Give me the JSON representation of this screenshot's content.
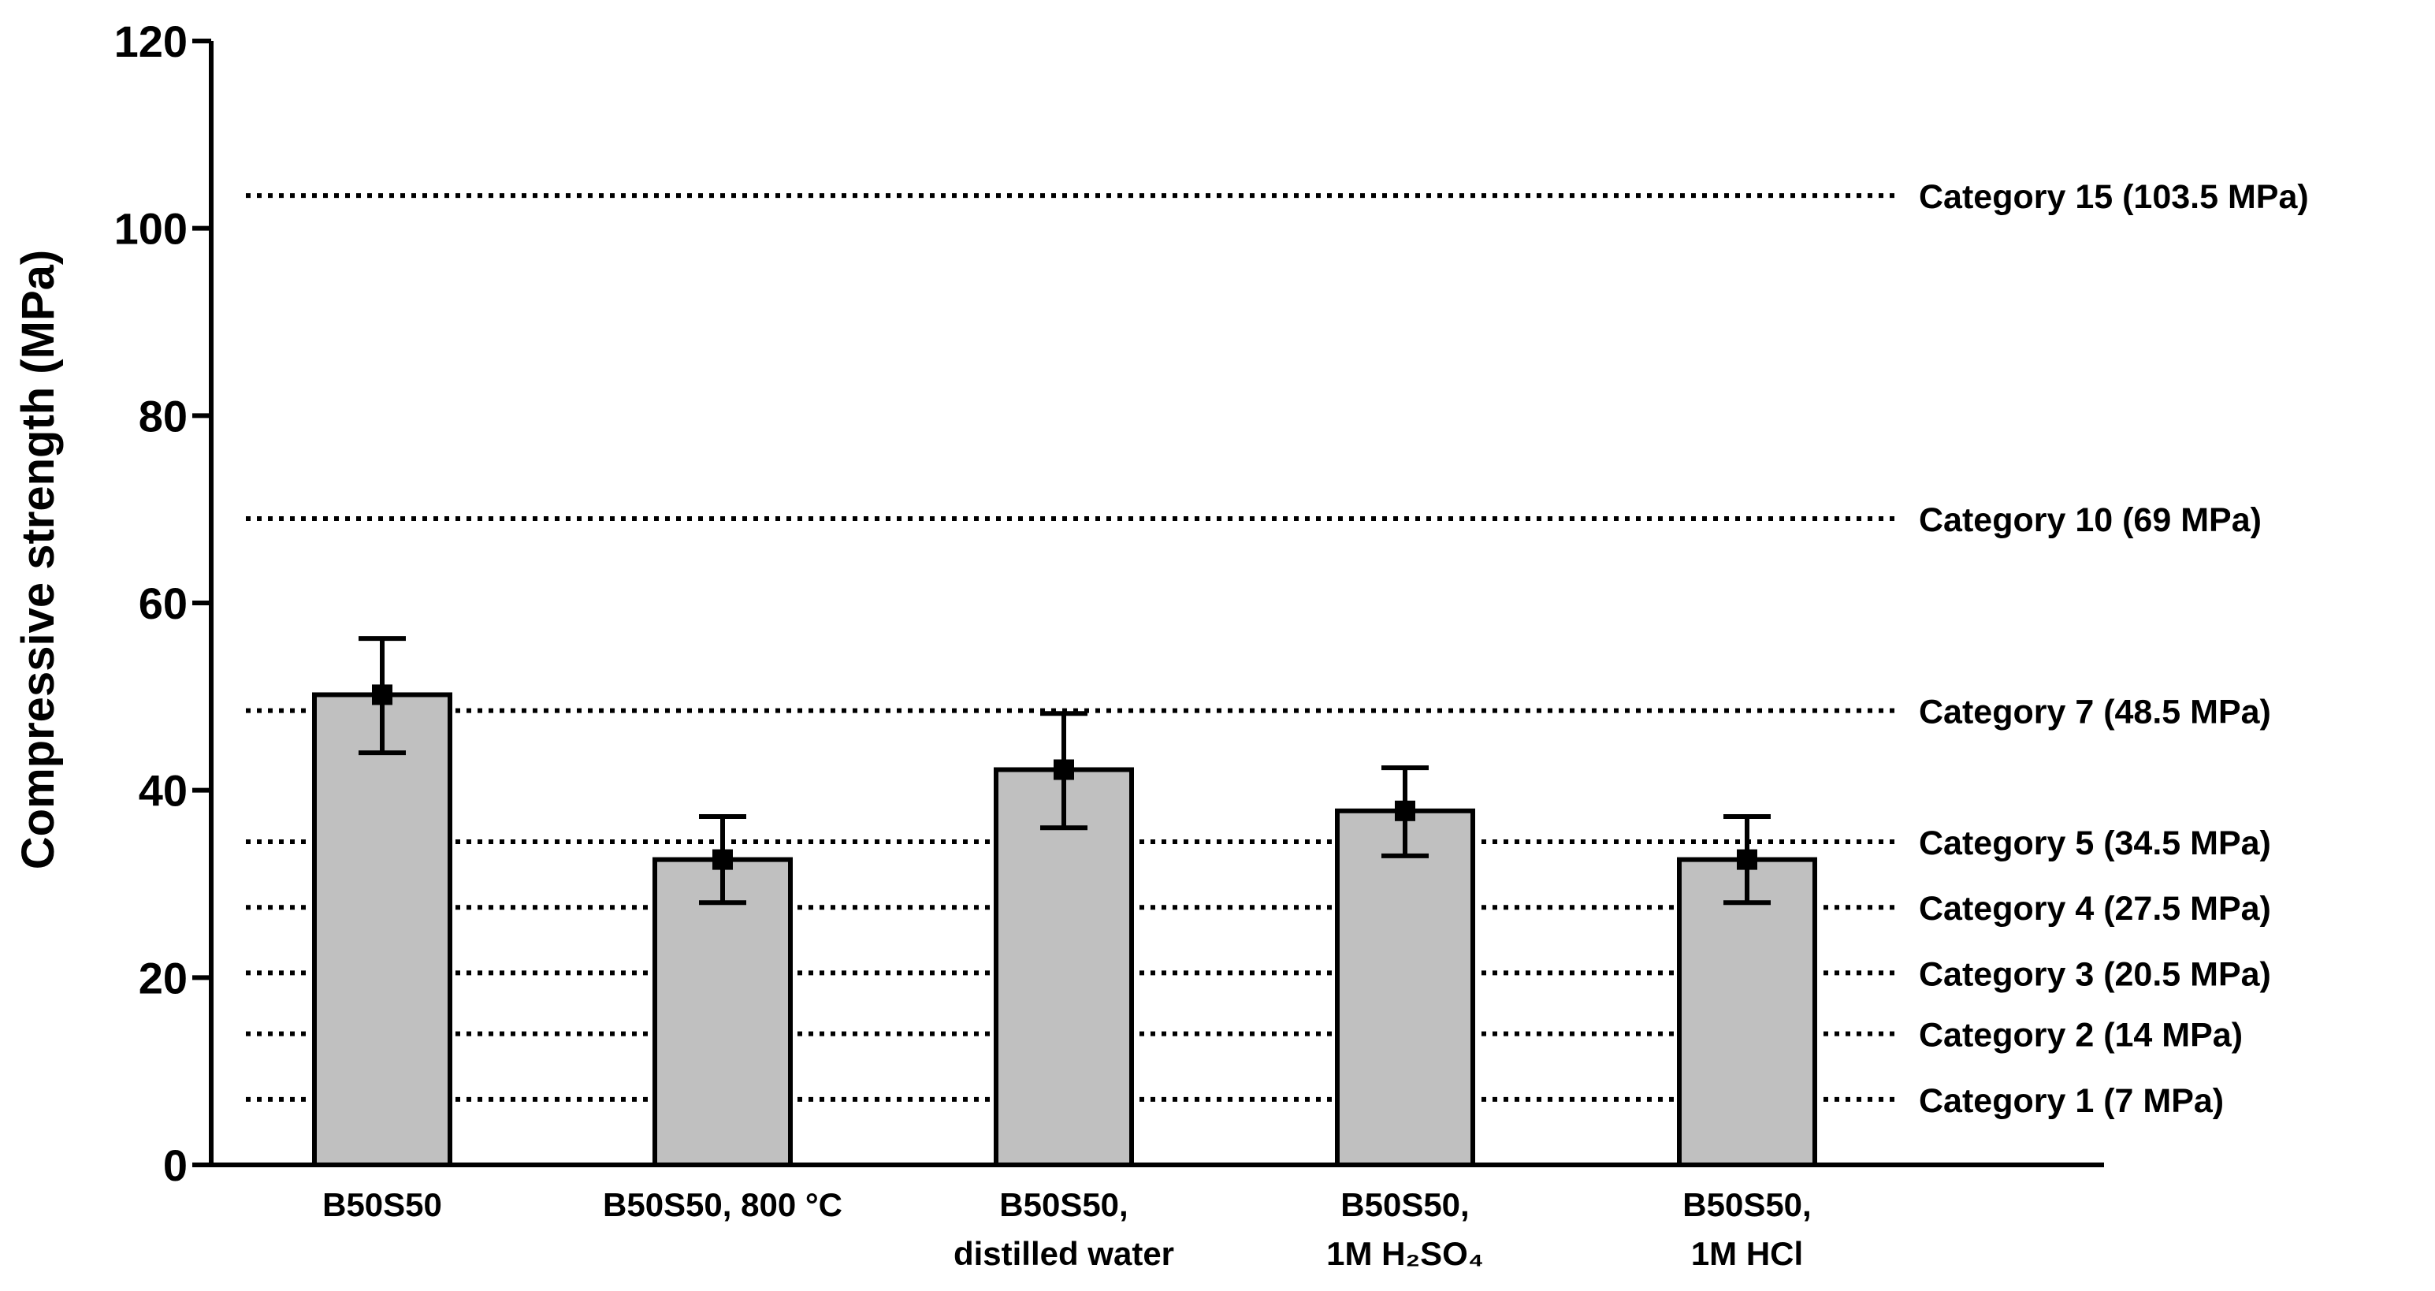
{
  "chart_data": {
    "type": "bar",
    "title": "",
    "xlabel": "",
    "ylabel": "Compressive strength (MPa)",
    "ylim": [
      0,
      120
    ],
    "yticks": [
      "0",
      "20",
      "40",
      "60",
      "80",
      "100",
      "120"
    ],
    "grid": false,
    "legend": "none",
    "categories": [
      {
        "line1": "B50S50",
        "line2": ""
      },
      {
        "line1": "B50S50, 800 °C",
        "line2": ""
      },
      {
        "line1": "B50S50,",
        "line2": "distilled water"
      },
      {
        "line1": "B50S50,",
        "line2": "1M H₂SO₄"
      },
      {
        "line1": "B50S50,",
        "line2": "1M HCl"
      }
    ],
    "series": [
      {
        "values": [
          50.2,
          32.6,
          42.2,
          37.8,
          32.6
        ],
        "error_low": [
          44.0,
          28.0,
          36.0,
          33.0,
          28.0
        ],
        "error_high": [
          56.2,
          37.2,
          48.2,
          42.4,
          37.2
        ]
      }
    ],
    "reference_lines": [
      {
        "label": "Category 15 (103.5 MPa)",
        "value": 103.5
      },
      {
        "label": "Category 10 (69 MPa)",
        "value": 69
      },
      {
        "label": "Category 7 (48.5 MPa)",
        "value": 48.5
      },
      {
        "label": "Category 5 (34.5 MPa)",
        "value": 34.5
      },
      {
        "label": "Category 4 (27.5 MPa)",
        "value": 27.5
      },
      {
        "label": "Category 3 (20.5 MPa)",
        "value": 20.5
      },
      {
        "label": "Category 2 (14 MPa)",
        "value": 14
      },
      {
        "label": "Category 1 (7 MPa)",
        "value": 7
      }
    ],
    "colors": {
      "bar_fill": "#c0c0c0",
      "bar_stroke": "#000000",
      "axis": "#000000",
      "reference_line": "#000000"
    }
  }
}
